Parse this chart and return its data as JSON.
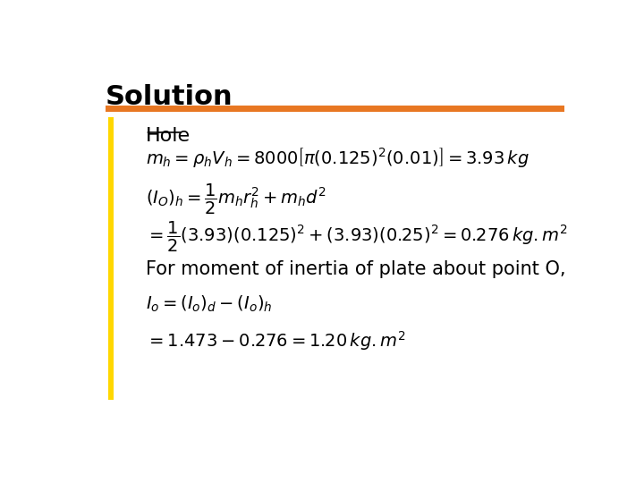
{
  "title": "Solution",
  "title_fontsize": 22,
  "title_fontweight": "bold",
  "bg_color": "#ffffff",
  "orange_bar_color": "#E87722",
  "yellow_bar_color": "#FFD700",
  "hole_label": "Hole",
  "eq1": "$m_h = \\rho_h V_h = 8000\\left[\\pi(0.125)^2(0.01)\\right] = 3.93\\,kg$",
  "eq2": "$\\left(I_O\\right)_h = \\dfrac{1}{2}m_h r_h^2 + m_h d^2$",
  "eq3": "$= \\dfrac{1}{2}(3.93)(0.125)^2 + (3.93)(0.25)^2 = 0.276\\,kg.m^2$",
  "text1": "For moment of inertia of plate about point O,",
  "eq4": "$I_o = \\left(I_o\\right)_d - \\left(I_o\\right)_h$",
  "eq5": "$= 1.473 - 0.276 = 1.20\\,kg.m^2$",
  "text_color": "#000000",
  "eq_fontsize": 14,
  "text_fontsize": 15,
  "hole_fontsize": 16
}
